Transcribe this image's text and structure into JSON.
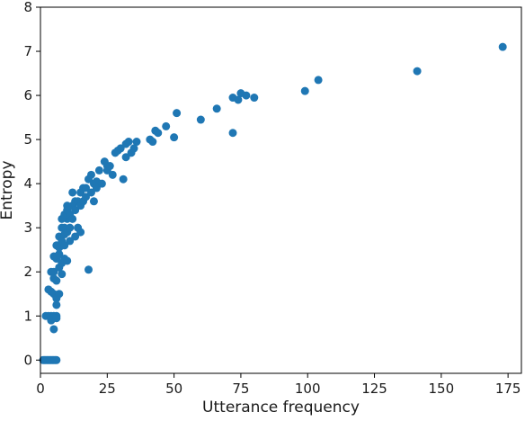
{
  "chart_data": {
    "type": "scatter",
    "title": "",
    "xlabel": "Utterance frequency",
    "ylabel": "Entropy",
    "xlim": [
      0,
      180
    ],
    "ylim": [
      -0.3,
      8
    ],
    "xticks": [
      0,
      25,
      50,
      75,
      100,
      125,
      150,
      175
    ],
    "yticks": [
      0,
      1,
      2,
      3,
      4,
      5,
      6,
      7,
      8
    ],
    "grid": false,
    "legend": "none",
    "point_color": "#1f77b4",
    "series": [
      {
        "points": [
          [
            1,
            0
          ],
          [
            2,
            0
          ],
          [
            3,
            0
          ],
          [
            4,
            0
          ],
          [
            5,
            0
          ],
          [
            6,
            0
          ],
          [
            1.5,
            0
          ],
          [
            2.5,
            0
          ],
          [
            3.5,
            0
          ],
          [
            4.5,
            0
          ],
          [
            5.5,
            0
          ],
          [
            2,
            1
          ],
          [
            3,
            1
          ],
          [
            4,
            1
          ],
          [
            5,
            1
          ],
          [
            6,
            1
          ],
          [
            4,
            0.9
          ],
          [
            5,
            0.7
          ],
          [
            6,
            0.95
          ],
          [
            3,
            1.6
          ],
          [
            4,
            1.55
          ],
          [
            5,
            1.5
          ],
          [
            6,
            1.4
          ],
          [
            6,
            1.25
          ],
          [
            7,
            1.5
          ],
          [
            4,
            2
          ],
          [
            5,
            2
          ],
          [
            5,
            1.85
          ],
          [
            6,
            1.8
          ],
          [
            6,
            2.3
          ],
          [
            7,
            2.1
          ],
          [
            5,
            2.35
          ],
          [
            7,
            2.4
          ],
          [
            8,
            2.2
          ],
          [
            8,
            1.95
          ],
          [
            9,
            2.3
          ],
          [
            10,
            2.25
          ],
          [
            6,
            2.6
          ],
          [
            7,
            2.8
          ],
          [
            7,
            2.55
          ],
          [
            8,
            2.7
          ],
          [
            8,
            3
          ],
          [
            9,
            2.6
          ],
          [
            9,
            3
          ],
          [
            9,
            2.85
          ],
          [
            10,
            3.2
          ],
          [
            10,
            2.9
          ],
          [
            11,
            2.7
          ],
          [
            11,
            3
          ],
          [
            8,
            3.2
          ],
          [
            9,
            3.3
          ],
          [
            10,
            3.4
          ],
          [
            11,
            3.3
          ],
          [
            12,
            3.5
          ],
          [
            12,
            3.2
          ],
          [
            13,
            3.6
          ],
          [
            13,
            2.8
          ],
          [
            14,
            3
          ],
          [
            15,
            2.9
          ],
          [
            10,
            3.5
          ],
          [
            12,
            3.8
          ],
          [
            13,
            3.4
          ],
          [
            14,
            3.6
          ],
          [
            15,
            3.8
          ],
          [
            15,
            3.5
          ],
          [
            16,
            3.9
          ],
          [
            16,
            3.6
          ],
          [
            17,
            3.9
          ],
          [
            18,
            4.1
          ],
          [
            17,
            3.7
          ],
          [
            19,
            3.8
          ],
          [
            20,
            4
          ],
          [
            21,
            4.05
          ],
          [
            20,
            3.6
          ],
          [
            19,
            4.2
          ],
          [
            22,
            4.3
          ],
          [
            21,
            3.9
          ],
          [
            23,
            4
          ],
          [
            24,
            4.5
          ],
          [
            25,
            4.4
          ],
          [
            25,
            4.3
          ],
          [
            26,
            4.4
          ],
          [
            27,
            4.2
          ],
          [
            28,
            4.7
          ],
          [
            29,
            4.75
          ],
          [
            30,
            4.8
          ],
          [
            31,
            4.1
          ],
          [
            32,
            4.9
          ],
          [
            32,
            4.6
          ],
          [
            33,
            4.95
          ],
          [
            34,
            4.7
          ],
          [
            36,
            4.95
          ],
          [
            35,
            4.8
          ],
          [
            41,
            5
          ],
          [
            42,
            4.95
          ],
          [
            43,
            5.2
          ],
          [
            44,
            5.15
          ],
          [
            47,
            5.3
          ],
          [
            50,
            5.05
          ],
          [
            51,
            5.6
          ],
          [
            60,
            5.45
          ],
          [
            66,
            5.7
          ],
          [
            72,
            5.15
          ],
          [
            72,
            5.95
          ],
          [
            74,
            5.9
          ],
          [
            75,
            6.05
          ],
          [
            77,
            6
          ],
          [
            80,
            5.95
          ],
          [
            99,
            6.1
          ],
          [
            104,
            6.35
          ],
          [
            141,
            6.55
          ],
          [
            173,
            7.1
          ],
          [
            18,
            2.05
          ]
        ]
      }
    ]
  }
}
